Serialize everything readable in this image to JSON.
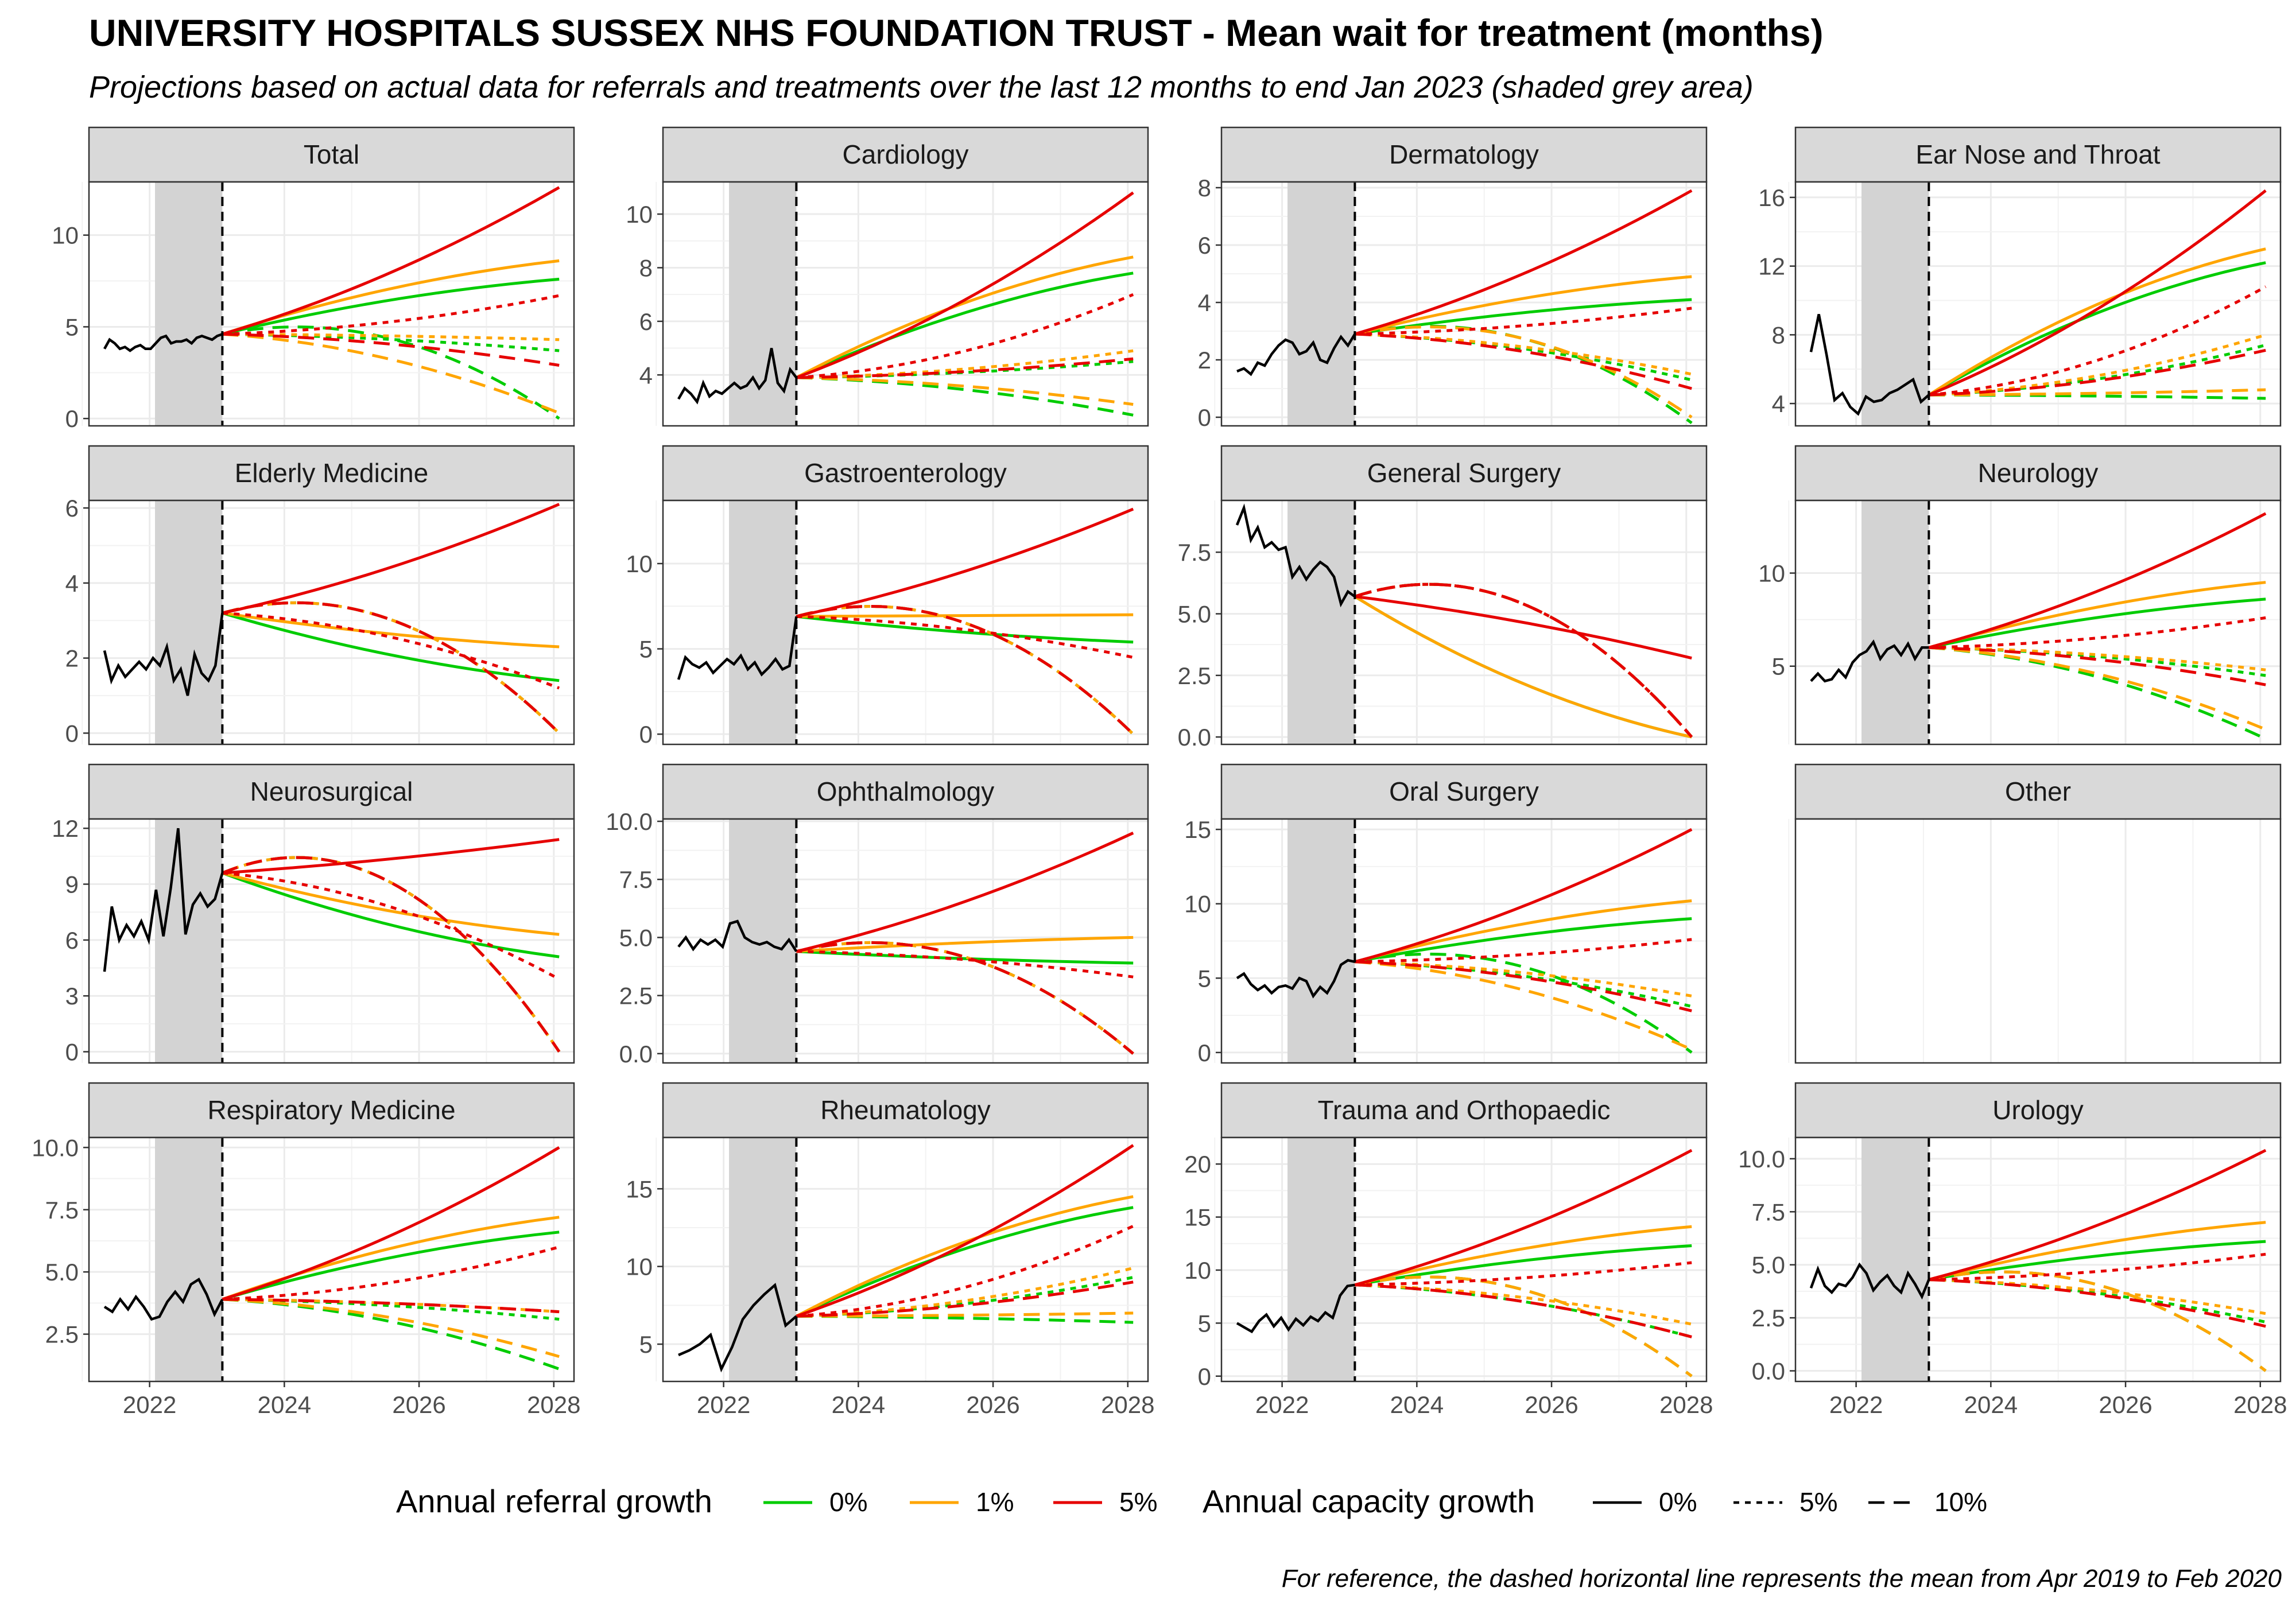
{
  "title": "UNIVERSITY HOSPITALS SUSSEX NHS FOUNDATION TRUST - Mean wait for treatment (months)",
  "subtitle": "Projections based on actual data for referrals and treatments over the last 12 months to end Jan 2023 (shaded grey area)",
  "caption": "For reference, the dashed horizontal line represents the mean from Apr 2019 to Feb 2020",
  "legend": {
    "referral_title": "Annual referral growth",
    "referral_items": [
      {
        "label": "0%",
        "color": "#00CC00"
      },
      {
        "label": "1%",
        "color": "#FFA500"
      },
      {
        "label": "5%",
        "color": "#E60000"
      }
    ],
    "capacity_title": "Annual capacity growth",
    "capacity_items": [
      {
        "label": "0%",
        "dash": "solid"
      },
      {
        "label": "5%",
        "dash": "dotted"
      },
      {
        "label": "10%",
        "dash": "dashed"
      }
    ]
  },
  "chart_data": {
    "type": "line",
    "facet_layout": "4x4 grid",
    "x_axis": {
      "ticks": [
        "2022",
        "2024",
        "2026",
        "2028"
      ],
      "range": [
        2021.1,
        2028.3
      ]
    },
    "shaded_period": [
      2022.08,
      2023.08
    ],
    "projection_start": 2023.08,
    "projection_end": 2028.08,
    "series_keys": [
      "0% referral / 0% capacity",
      "1% referral / 0% capacity",
      "5% referral / 0% capacity",
      "0% referral / 5% capacity",
      "1% referral / 5% capacity",
      "5% referral / 5% capacity",
      "0% referral / 10% capacity",
      "1% referral / 10% capacity",
      "5% referral / 10% capacity"
    ],
    "panels": [
      {
        "name": "Total",
        "ylim": [
          -0.4,
          12.9
        ],
        "yticks": [
          "0",
          "5",
          "10"
        ],
        "yvals": [
          0,
          5,
          10
        ],
        "actual": [
          3.8,
          4.3,
          4.1,
          3.8,
          3.9,
          3.7,
          3.9,
          4.0,
          3.8,
          3.8,
          4.1,
          4.4,
          4.5,
          4.1,
          4.2,
          4.2,
          4.3,
          4.1,
          4.4,
          4.5,
          4.4,
          4.3,
          4.5,
          4.6
        ],
        "proj": {
          "green": [
            7.6,
            3.7,
            0.0
          ],
          "orange": [
            8.6,
            4.3,
            0.3
          ],
          "red": [
            12.6,
            6.7,
            2.9
          ],
          "red_mid": [
            6.2,
            3.6,
            2.8
          ]
        }
      },
      {
        "name": "Cardiology",
        "ylim": [
          2.1,
          11.2
        ],
        "yticks": [
          "4",
          "6",
          "8",
          "10"
        ],
        "yvals": [
          4,
          6,
          8,
          10
        ],
        "actual": [
          3.1,
          3.5,
          3.3,
          3.0,
          3.7,
          3.2,
          3.4,
          3.3,
          3.5,
          3.7,
          3.5,
          3.6,
          3.9,
          3.5,
          3.8,
          5.0,
          3.7,
          3.4,
          4.2,
          3.9
        ],
        "proj": {
          "green": [
            7.8,
            4.5,
            2.5
          ],
          "orange": [
            8.4,
            4.9,
            2.9
          ],
          "red": [
            10.8,
            7.0,
            4.6
          ],
          "red_mid": [
            5.3,
            4.8,
            4.6
          ]
        }
      },
      {
        "name": "Dermatology",
        "ylim": [
          -0.3,
          8.2
        ],
        "yticks": [
          "0",
          "2",
          "4",
          "6",
          "8"
        ],
        "yvals": [
          0,
          2,
          4,
          6,
          8
        ],
        "actual": [
          1.6,
          1.7,
          1.5,
          1.9,
          1.8,
          2.2,
          2.5,
          2.7,
          2.6,
          2.2,
          2.3,
          2.6,
          2.0,
          1.9,
          2.4,
          2.8,
          2.5,
          2.9
        ],
        "proj": {
          "green": [
            4.1,
            1.3,
            -0.2
          ],
          "orange": [
            4.9,
            1.5,
            0.0
          ],
          "red": [
            7.9,
            3.8,
            1.0
          ],
          "red_mid": [
            3.3,
            2.0,
            1.0
          ]
        }
      },
      {
        "name": "Ear Nose and Throat",
        "ylim": [
          2.7,
          16.9
        ],
        "yticks": [
          "4",
          "8",
          "12",
          "16"
        ],
        "yvals": [
          4,
          8,
          12,
          16
        ],
        "actual": [
          7.0,
          9.2,
          6.8,
          4.2,
          4.6,
          3.8,
          3.4,
          4.4,
          4.1,
          4.2,
          4.6,
          4.8,
          5.1,
          5.4,
          4.1,
          4.5
        ],
        "proj": {
          "green": [
            12.2,
            7.4,
            4.3
          ],
          "orange": [
            13.0,
            8.0,
            4.8
          ],
          "red": [
            16.4,
            10.8,
            7.1
          ],
          "red_mid": [
            7.0,
            6.0,
            5.4
          ]
        }
      },
      {
        "name": "Elderly Medicine",
        "ylim": [
          -0.3,
          6.2
        ],
        "yticks": [
          "0",
          "2",
          "4",
          "6"
        ],
        "yvals": [
          0,
          2,
          4,
          6
        ],
        "actual": [
          2.2,
          1.4,
          1.8,
          1.5,
          1.7,
          1.9,
          1.7,
          2.0,
          1.8,
          2.3,
          1.4,
          1.7,
          1.0,
          2.1,
          1.6,
          1.4,
          1.8,
          3.2
        ],
        "proj": {
          "green": [
            1.4,
            0.0,
            0.0
          ],
          "orange": [
            2.3,
            0.0,
            0.0
          ],
          "red": [
            6.1,
            1.2,
            0.0
          ],
          "red_mid": [
            1.2,
            0.0,
            0.0
          ]
        }
      },
      {
        "name": "Gastroenterology",
        "ylim": [
          -0.6,
          13.7
        ],
        "yticks": [
          "0",
          "5",
          "10"
        ],
        "yvals": [
          0,
          5,
          10
        ],
        "actual": [
          3.2,
          4.5,
          4.1,
          3.9,
          4.2,
          3.6,
          4.0,
          4.4,
          4.1,
          4.6,
          3.8,
          4.2,
          3.5,
          3.9,
          4.4,
          3.8,
          4.0,
          6.9
        ],
        "proj": {
          "green": [
            5.4,
            0.0,
            0.0
          ],
          "orange": [
            7.0,
            0.0,
            0.0
          ],
          "red": [
            13.2,
            4.5,
            0.0
          ],
          "red_mid": [
            4.5,
            0.0,
            0.0
          ]
        }
      },
      {
        "name": "General Surgery",
        "ylim": [
          -0.3,
          9.6
        ],
        "yticks": [
          "0.0",
          "2.5",
          "5.0",
          "7.5"
        ],
        "yvals": [
          0,
          2.5,
          5,
          7.5
        ],
        "actual": [
          8.6,
          9.3,
          8.0,
          8.5,
          7.7,
          7.9,
          7.6,
          7.7,
          6.5,
          6.9,
          6.4,
          6.8,
          7.1,
          6.9,
          6.5,
          5.4,
          5.9,
          5.7
        ],
        "proj": {
          "green": [
            0.0,
            0.0,
            0.0
          ],
          "orange": [
            0.0,
            0.0,
            0.0
          ],
          "red": [
            3.2,
            0.0,
            0.0
          ],
          "red_mid": [
            0.0,
            0.0,
            0.0
          ]
        }
      },
      {
        "name": "Neurology",
        "ylim": [
          0.8,
          13.9
        ],
        "yticks": [
          "5",
          "10"
        ],
        "yvals": [
          5,
          10
        ],
        "actual": [
          4.2,
          4.6,
          4.2,
          4.3,
          4.8,
          4.4,
          5.2,
          5.6,
          5.8,
          6.3,
          5.4,
          5.9,
          6.1,
          5.6,
          6.2,
          5.4,
          6.0,
          6.0
        ],
        "proj": {
          "green": [
            8.6,
            4.5,
            1.1
          ],
          "orange": [
            9.5,
            4.8,
            1.6
          ],
          "red": [
            13.2,
            7.6,
            4.0
          ],
          "red_mid": [
            6.4,
            5.0,
            4.0
          ]
        }
      },
      {
        "name": "Neurosurgical",
        "ylim": [
          -0.6,
          12.5
        ],
        "yticks": [
          "0",
          "3",
          "6",
          "9",
          "12"
        ],
        "yvals": [
          0,
          3,
          6,
          9,
          12
        ],
        "actual": [
          4.3,
          7.8,
          6.0,
          6.8,
          6.2,
          7.0,
          6.0,
          8.7,
          6.2,
          8.8,
          12.0,
          6.3,
          7.9,
          8.5,
          7.8,
          8.2,
          9.6
        ],
        "proj": {
          "green": [
            5.1,
            0.0,
            0.0
          ],
          "orange": [
            6.3,
            0.0,
            0.0
          ],
          "red": [
            11.4,
            3.9,
            0.0
          ],
          "red_mid": [
            3.8,
            0.0,
            0.0
          ]
        }
      },
      {
        "name": "Ophthalmology",
        "ylim": [
          -0.4,
          10.1
        ],
        "yticks": [
          "0.0",
          "2.5",
          "5.0",
          "7.5",
          "10.0"
        ],
        "yvals": [
          0,
          2.5,
          5,
          7.5,
          10
        ],
        "actual": [
          4.6,
          5.0,
          4.5,
          4.9,
          4.7,
          4.9,
          4.6,
          5.6,
          5.7,
          5.0,
          4.8,
          4.7,
          4.8,
          4.6,
          4.5,
          4.9,
          4.4
        ],
        "proj": {
          "green": [
            3.9,
            0.0,
            0.0
          ],
          "orange": [
            5.0,
            0.0,
            0.0
          ],
          "red": [
            9.5,
            3.3,
            0.0
          ],
          "red_mid": [
            2.8,
            0.0,
            0.0
          ]
        }
      },
      {
        "name": "Oral Surgery",
        "ylim": [
          -0.7,
          15.7
        ],
        "yticks": [
          "0",
          "5",
          "10",
          "15"
        ],
        "yvals": [
          0,
          5,
          10,
          15
        ],
        "actual": [
          5.0,
          5.3,
          4.6,
          4.2,
          4.5,
          4.0,
          4.4,
          4.5,
          4.3,
          5.0,
          4.8,
          3.8,
          4.4,
          4.0,
          4.8,
          5.9,
          6.2,
          6.1
        ],
        "proj": {
          "green": [
            9.0,
            3.1,
            0.0
          ],
          "orange": [
            10.2,
            3.8,
            0.2
          ],
          "red": [
            15.0,
            7.6,
            2.8
          ],
          "red_mid": [
            5.1,
            3.3,
            2.8
          ]
        }
      },
      {
        "name": "Other",
        "ylim": [
          0,
          1
        ],
        "yticks": [],
        "yvals": [],
        "actual": [],
        "proj": null
      },
      {
        "name": "Respiratory Medicine",
        "ylim": [
          0.6,
          10.4
        ],
        "yticks": [
          "2.5",
          "5.0",
          "7.5",
          "10.0"
        ],
        "yvals": [
          2.5,
          5,
          7.5,
          10
        ],
        "actual": [
          3.6,
          3.4,
          3.9,
          3.5,
          4.0,
          3.6,
          3.1,
          3.2,
          3.8,
          4.2,
          3.8,
          4.5,
          4.7,
          4.1,
          3.3,
          3.9
        ],
        "proj": {
          "green": [
            6.6,
            3.1,
            1.1
          ],
          "orange": [
            7.2,
            3.4,
            1.6
          ],
          "red": [
            10.0,
            6.0,
            3.4
          ],
          "red_mid": [
            4.0,
            3.6,
            3.4
          ]
        }
      },
      {
        "name": "Rheumatology",
        "ylim": [
          2.6,
          18.3
        ],
        "yticks": [
          "5",
          "10",
          "15"
        ],
        "yvals": [
          5,
          10,
          15
        ],
        "actual": [
          4.3,
          4.6,
          5.0,
          5.6,
          3.4,
          4.8,
          6.6,
          7.5,
          8.2,
          8.8,
          6.2,
          6.8
        ],
        "proj": {
          "green": [
            13.8,
            9.3,
            6.4
          ],
          "orange": [
            14.5,
            9.9,
            7.0
          ],
          "red": [
            17.8,
            12.6,
            9.0
          ],
          "red_mid": [
            10.0,
            9.3,
            9.0
          ]
        }
      },
      {
        "name": "Trauma and Orthopaedic",
        "ylim": [
          -0.5,
          22.5
        ],
        "yticks": [
          "0",
          "5",
          "10",
          "15",
          "20"
        ],
        "yvals": [
          0,
          5,
          10,
          15,
          20
        ],
        "actual": [
          5.0,
          4.6,
          4.2,
          5.2,
          5.8,
          4.7,
          5.5,
          4.4,
          5.4,
          4.8,
          5.6,
          5.2,
          6.0,
          5.5,
          7.6,
          8.5,
          8.6
        ],
        "proj": {
          "green": [
            12.3,
            3.7,
            0.0
          ],
          "orange": [
            14.1,
            4.9,
            0.0
          ],
          "red": [
            21.3,
            10.7,
            3.7
          ],
          "red_mid": [
            7.2,
            4.9,
            3.7
          ]
        }
      },
      {
        "name": "Urology",
        "ylim": [
          -0.5,
          11.0
        ],
        "yticks": [
          "0.0",
          "2.5",
          "5.0",
          "7.5",
          "10.0"
        ],
        "yvals": [
          0,
          2.5,
          5,
          7.5,
          10
        ],
        "actual": [
          3.9,
          4.8,
          4.0,
          3.7,
          4.1,
          4.0,
          4.4,
          5.0,
          4.6,
          3.8,
          4.2,
          4.5,
          4.0,
          3.7,
          4.6,
          4.1,
          3.5,
          4.3
        ],
        "proj": {
          "green": [
            6.1,
            2.3,
            0.0
          ],
          "orange": [
            7.0,
            2.7,
            0.0
          ],
          "red": [
            10.4,
            5.5,
            2.1
          ],
          "red_mid": [
            3.6,
            2.5,
            2.1
          ]
        }
      }
    ]
  }
}
